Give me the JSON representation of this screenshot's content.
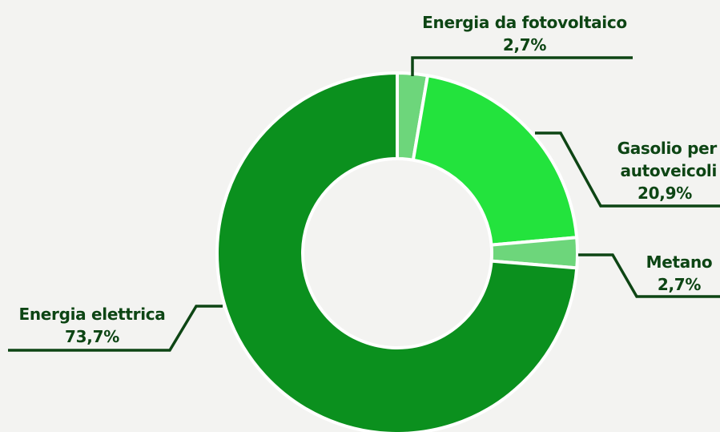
{
  "chart_data": {
    "type": "donut",
    "categories": [
      "Energia da fotovoltaico",
      "Gasolio per autoveicoli",
      "Metano",
      "Energia elettrica"
    ],
    "values": [
      2.7,
      20.9,
      2.7,
      73.7
    ],
    "value_labels": [
      "2,7%",
      "20,9%",
      "2,7%",
      "73,7%"
    ],
    "colors": [
      "#6dd67b",
      "#23e33d",
      "#6dd67b",
      "#0b901e"
    ]
  }
}
